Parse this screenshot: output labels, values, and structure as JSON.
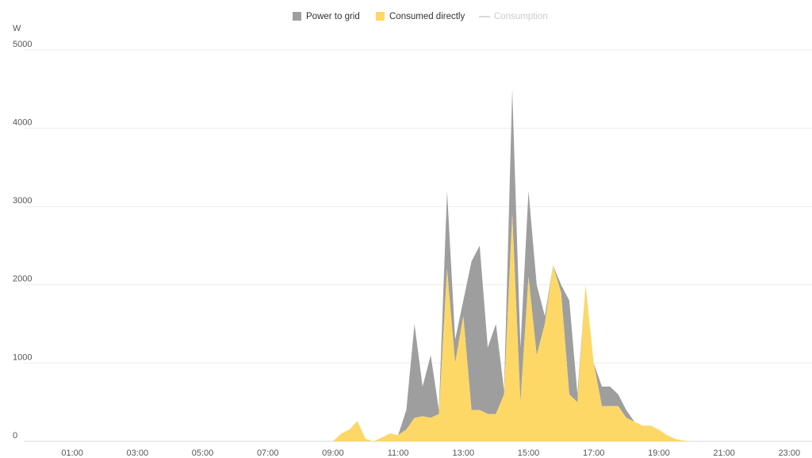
{
  "chart_data": {
    "type": "area",
    "stacked": true,
    "y_unit": "W",
    "x": [
      9,
      9.25,
      9.5,
      9.75,
      10,
      10.25,
      10.5,
      10.75,
      11,
      11.25,
      11.5,
      11.75,
      12,
      12.25,
      12.5,
      12.75,
      13,
      13.25,
      13.5,
      13.75,
      14,
      14.25,
      14.5,
      14.75,
      15,
      15.25,
      15.5,
      15.75,
      16,
      16.25,
      16.5,
      16.75,
      17,
      17.25,
      17.5,
      17.75,
      18,
      18.25,
      18.5,
      18.75,
      19,
      19.25,
      19.5,
      19.75,
      20
    ],
    "series": [
      {
        "name": "Power to grid",
        "color": "#9e9e9e",
        "values": [
          0,
          0,
          0,
          0,
          0,
          0,
          0,
          0,
          0,
          250,
          1200,
          380,
          800,
          50,
          1000,
          300,
          200,
          1900,
          2100,
          850,
          1150,
          50,
          1600,
          700,
          1100,
          900,
          100,
          0,
          100,
          1200,
          100,
          0,
          0,
          250,
          250,
          150,
          100,
          0,
          0,
          0,
          0,
          0,
          0,
          0,
          0
        ]
      },
      {
        "name": "Consumed directly",
        "color": "#fdd866",
        "values": [
          0,
          100,
          150,
          260,
          30,
          0,
          50,
          100,
          80,
          150,
          300,
          320,
          300,
          350,
          2200,
          1000,
          1600,
          400,
          400,
          350,
          350,
          600,
          2900,
          500,
          2100,
          1100,
          1500,
          2250,
          1900,
          600,
          500,
          2000,
          1000,
          450,
          450,
          450,
          300,
          250,
          200,
          200,
          150,
          80,
          30,
          10,
          0
        ]
      },
      {
        "name": "Consumption",
        "color": "#cccccc",
        "hidden": true,
        "values": [
          null,
          null,
          null,
          null,
          null,
          null,
          null,
          null,
          null,
          null,
          null,
          null,
          null,
          null,
          null,
          null,
          null,
          null,
          null,
          null,
          null,
          null,
          null,
          null,
          null,
          null,
          null,
          null,
          null,
          null,
          null,
          null,
          null,
          null,
          null,
          null,
          null,
          null,
          null,
          null,
          null,
          null,
          null,
          null,
          null
        ]
      }
    ],
    "xlim": [
      0,
      23.6
    ],
    "xticks": [
      {
        "value": 1,
        "label": "01:00"
      },
      {
        "value": 3,
        "label": "03:00"
      },
      {
        "value": 5,
        "label": "05:00"
      },
      {
        "value": 7,
        "label": "07:00"
      },
      {
        "value": 9,
        "label": "09:00"
      },
      {
        "value": 11,
        "label": "11:00"
      },
      {
        "value": 13,
        "label": "13:00"
      },
      {
        "value": 15,
        "label": "15:00"
      },
      {
        "value": 17,
        "label": "17:00"
      },
      {
        "value": 19,
        "label": "19:00"
      },
      {
        "value": 21,
        "label": "21:00"
      },
      {
        "value": 23,
        "label": "23:00"
      }
    ],
    "ylim": [
      0,
      5000
    ],
    "yticks": [
      0,
      1000,
      2000,
      3000,
      4000,
      5000
    ],
    "grid": true
  }
}
